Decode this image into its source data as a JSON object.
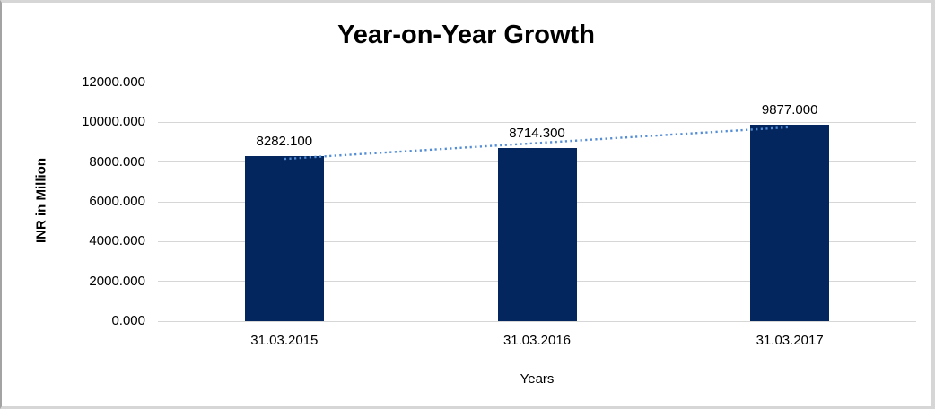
{
  "chart_data": {
    "type": "bar",
    "title": "Year-on-Year Growth",
    "xlabel": "Years",
    "ylabel": "INR in Million",
    "categories": [
      "31.03.2015",
      "31.03.2016",
      "31.03.2017"
    ],
    "values": [
      8282.1,
      8714.3,
      9877.0
    ],
    "data_labels": [
      "8282.100",
      "8714.300",
      "9877.000"
    ],
    "y_tick_labels": [
      "12000.000",
      "10000.000",
      "8000.000",
      "6000.000",
      "4000.000",
      "2000.000",
      "0.000"
    ],
    "y_tick_values": [
      12000,
      10000,
      8000,
      6000,
      4000,
      2000,
      0
    ],
    "ylim": [
      0,
      12000
    ],
    "grid": true,
    "legend": "none",
    "bar_color": "#04265e",
    "gridline_color": "#d6d6d6",
    "trendline": {
      "type": "linear",
      "style": "dotted",
      "color": "#538dd5"
    }
  }
}
